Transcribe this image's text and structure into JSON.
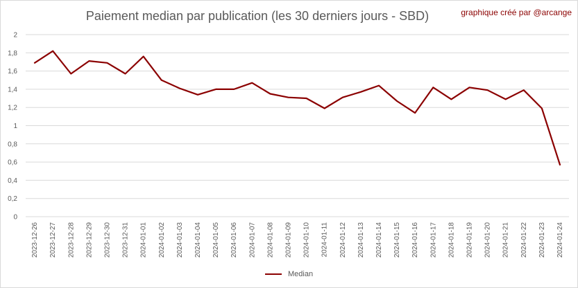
{
  "title": "Paiement median par publication (les 30 derniers jours - SBD)",
  "credit": "graphique créé par @arcange",
  "colors": {
    "line": "#8b0000",
    "grid": "#d9d9d9",
    "text": "#595959"
  },
  "chart_data": {
    "type": "line",
    "title": "Paiement median par publication (les 30 derniers jours - SBD)",
    "xlabel": "",
    "ylabel": "",
    "ylim": [
      0,
      2
    ],
    "yticks": [
      "0",
      "0,2",
      "0,4",
      "0,6",
      "0,8",
      "1",
      "1,2",
      "1,4",
      "1,6",
      "1,8",
      "2"
    ],
    "grid": true,
    "legend_position": "bottom",
    "categories": [
      "2023-12-26",
      "2023-12-27",
      "2023-12-28",
      "2023-12-29",
      "2023-12-30",
      "2023-12-31",
      "2024-01-01",
      "2024-01-02",
      "2024-01-03",
      "2024-01-04",
      "2024-01-05",
      "2024-01-06",
      "2024-01-07",
      "2024-01-08",
      "2024-01-09",
      "2024-01-10",
      "2024-01-11",
      "2024-01-12",
      "2024-01-13",
      "2024-01-14",
      "2024-01-15",
      "2024-01-16",
      "2024-01-17",
      "2024-01-18",
      "2024-01-19",
      "2024-01-20",
      "2024-01-21",
      "2024-01-22",
      "2024-01-23",
      "2024-01-24"
    ],
    "series": [
      {
        "name": "Median",
        "color": "#8b0000",
        "values": [
          1.69,
          1.82,
          1.57,
          1.71,
          1.69,
          1.57,
          1.76,
          1.5,
          1.41,
          1.34,
          1.4,
          1.4,
          1.47,
          1.35,
          1.31,
          1.3,
          1.19,
          1.31,
          1.37,
          1.44,
          1.27,
          1.14,
          1.42,
          1.29,
          1.42,
          1.39,
          1.29,
          1.39,
          1.19,
          0.57
        ]
      }
    ]
  }
}
